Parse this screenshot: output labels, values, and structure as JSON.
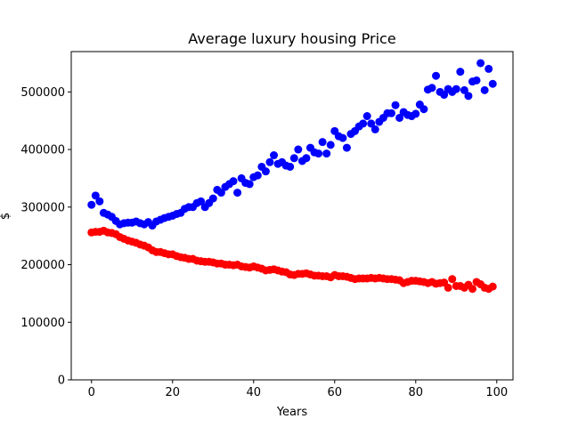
{
  "chart_data": {
    "type": "scatter",
    "title": "Average luxury housing Price",
    "xlabel": "Years",
    "ylabel": "$",
    "xlim": [
      -5,
      104
    ],
    "ylim": [
      0,
      570000
    ],
    "xticks": [
      0,
      20,
      40,
      60,
      80,
      100
    ],
    "yticks": [
      0,
      100000,
      200000,
      300000,
      400000,
      500000
    ],
    "xtick_labels": [
      "0",
      "20",
      "40",
      "60",
      "80",
      "100"
    ],
    "ytick_labels": [
      "0",
      "100000",
      "200000",
      "300000",
      "400000",
      "500000"
    ],
    "grid": false,
    "series": [
      {
        "color": "#0000ff",
        "x": [
          0,
          1,
          2,
          3,
          4,
          5,
          6,
          7,
          8,
          9,
          10,
          11,
          12,
          13,
          14,
          15,
          16,
          17,
          18,
          19,
          20,
          21,
          22,
          23,
          24,
          25,
          26,
          27,
          28,
          29,
          30,
          31,
          32,
          33,
          34,
          35,
          36,
          37,
          38,
          39,
          40,
          41,
          42,
          43,
          44,
          45,
          46,
          47,
          48,
          49,
          50,
          51,
          52,
          53,
          54,
          55,
          56,
          57,
          58,
          59,
          60,
          61,
          62,
          63,
          64,
          65,
          66,
          67,
          68,
          69,
          70,
          71,
          72,
          73,
          74,
          75,
          76,
          77,
          78,
          79,
          80,
          81,
          82,
          83,
          84,
          85,
          86,
          87,
          88,
          89,
          90,
          91,
          92,
          93,
          94,
          95,
          96,
          97,
          98,
          99
        ],
        "y": [
          304000,
          320000,
          310000,
          290000,
          287000,
          283000,
          276000,
          270000,
          272000,
          273000,
          273000,
          275000,
          272000,
          270000,
          274000,
          268000,
          275000,
          278000,
          281000,
          283000,
          285000,
          288000,
          290000,
          297000,
          300000,
          300000,
          307000,
          310000,
          300000,
          307000,
          315000,
          330000,
          325000,
          335000,
          340000,
          345000,
          325000,
          350000,
          342000,
          340000,
          352000,
          355000,
          370000,
          362000,
          378000,
          390000,
          375000,
          378000,
          372000,
          370000,
          385000,
          400000,
          380000,
          385000,
          403000,
          395000,
          393000,
          413000,
          393000,
          408000,
          432000,
          423000,
          420000,
          403000,
          427000,
          432000,
          440000,
          445000,
          458000,
          445000,
          435000,
          448000,
          455000,
          463000,
          463000,
          477000,
          455000,
          465000,
          460000,
          458000,
          462000,
          478000,
          470000,
          504000,
          507000,
          528000,
          500000,
          495000,
          505000,
          500000,
          505000,
          535000,
          503000,
          493000,
          518000,
          520000,
          550000,
          503000,
          540000,
          514000
        ]
      },
      {
        "color": "#ff0000",
        "x": [
          0,
          1,
          2,
          3,
          4,
          5,
          6,
          7,
          8,
          9,
          10,
          11,
          12,
          13,
          14,
          15,
          16,
          17,
          18,
          19,
          20,
          21,
          22,
          23,
          24,
          25,
          26,
          27,
          28,
          29,
          30,
          31,
          32,
          33,
          34,
          35,
          36,
          37,
          38,
          39,
          40,
          41,
          42,
          43,
          44,
          45,
          46,
          47,
          48,
          49,
          50,
          51,
          52,
          53,
          54,
          55,
          56,
          57,
          58,
          59,
          60,
          61,
          62,
          63,
          64,
          65,
          66,
          67,
          68,
          69,
          70,
          71,
          72,
          73,
          74,
          75,
          76,
          77,
          78,
          79,
          80,
          81,
          82,
          83,
          84,
          85,
          86,
          87,
          88,
          89,
          90,
          91,
          92,
          93,
          94,
          95,
          96,
          97,
          98,
          99
        ],
        "y": [
          256000,
          257000,
          257000,
          259000,
          256000,
          255000,
          253000,
          248000,
          245000,
          242000,
          240000,
          238000,
          235000,
          233000,
          230000,
          225000,
          222000,
          222000,
          220000,
          218000,
          218000,
          215000,
          213000,
          212000,
          210000,
          210000,
          207000,
          206000,
          205000,
          205000,
          204000,
          202000,
          202000,
          200000,
          200000,
          199000,
          200000,
          197000,
          196000,
          195000,
          197000,
          195000,
          193000,
          190000,
          191000,
          192000,
          190000,
          188000,
          187000,
          183000,
          182000,
          184000,
          184000,
          185000,
          183000,
          181000,
          181000,
          180000,
          180000,
          178000,
          182000,
          180000,
          180000,
          179000,
          177000,
          175000,
          176000,
          176000,
          176000,
          177000,
          176000,
          177000,
          176000,
          175000,
          175000,
          174000,
          173000,
          168000,
          170000,
          172000,
          172000,
          171000,
          170000,
          168000,
          170000,
          167000,
          168000,
          169000,
          160000,
          175000,
          163000,
          163000,
          160000,
          165000,
          158000,
          170000,
          166000,
          160000,
          158000,
          162000
        ]
      }
    ]
  }
}
